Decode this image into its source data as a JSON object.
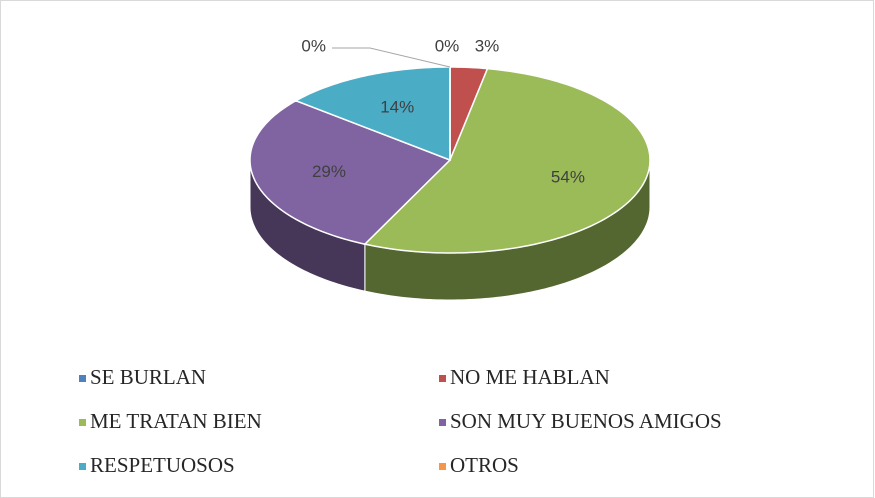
{
  "chart_data": {
    "type": "pie3d",
    "categories": [
      "SE BURLAN",
      "NO ME HABLAN",
      "ME TRATAN BIEN",
      "SON MUY BUENOS AMIGOS",
      "RESPETUOSOS",
      "OTROS"
    ],
    "values": [
      0,
      3,
      54,
      29,
      14,
      0
    ],
    "value_labels": [
      "0%",
      "3%",
      "54%",
      "29%",
      "14%",
      "0%"
    ],
    "colors": [
      "#4f81bd",
      "#c0504d",
      "#9bbb59",
      "#8064a2",
      "#4bacc6",
      "#f79646"
    ],
    "legend": "bottom"
  }
}
